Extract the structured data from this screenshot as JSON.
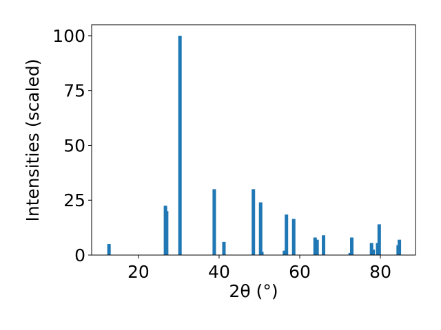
{
  "chart_data": {
    "type": "bar",
    "xlabel": "2θ (°)",
    "ylabel": "Intensities (scaled)",
    "x": [
      12.7,
      26.7,
      27.0,
      30.3,
      38.8,
      41.2,
      48.5,
      50.3,
      50.6,
      56.2,
      56.7,
      58.5,
      63.8,
      64.3,
      65.9,
      72.5,
      72.9,
      77.8,
      78.2,
      79.3,
      79.7,
      84.4,
      84.7
    ],
    "values": [
      5,
      22.5,
      20,
      100,
      30,
      6,
      30,
      24,
      1.5,
      2,
      18.5,
      16.5,
      8,
      7,
      9,
      1,
      8,
      5.5,
      2.5,
      5.5,
      14,
      4.5,
      7
    ],
    "color": "#1f77b4",
    "xlim": [
      8.4,
      88.7
    ],
    "xticks": [
      20,
      40,
      60,
      80
    ],
    "ylim": [
      0,
      105
    ],
    "yticks": [
      0,
      25,
      50,
      75,
      100
    ]
  }
}
